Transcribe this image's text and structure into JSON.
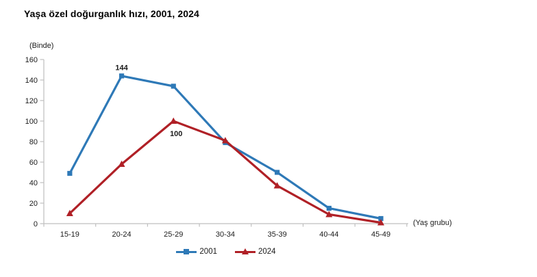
{
  "chart_data": {
    "type": "line",
    "title": "Yaşa özel doğurganlık hızı, 2001, 2024",
    "unit_label": "(Binde)",
    "x_axis_label": "(Yaş grubu)",
    "categories": [
      "15-19",
      "20-24",
      "25-29",
      "30-34",
      "35-39",
      "40-44",
      "45-49"
    ],
    "ylim": [
      0,
      160
    ],
    "yticks": [
      0,
      20,
      40,
      60,
      80,
      100,
      120,
      140,
      160
    ],
    "grid": false,
    "legend_position": "bottom",
    "background": "#ffffff",
    "axis_color": "#bfbfbf",
    "text_color": "#1a1a1a",
    "series": [
      {
        "name": "2001",
        "color": "#2e79b7",
        "marker": "square",
        "values": [
          49,
          144,
          134,
          79,
          50,
          15,
          5
        ],
        "data_labels": [
          {
            "index": 1,
            "label": "144",
            "position": "above"
          }
        ]
      },
      {
        "name": "2024",
        "color": "#b02026",
        "marker": "triangle",
        "values": [
          10,
          58,
          100,
          81,
          37,
          9,
          1
        ],
        "data_labels": [
          {
            "index": 2,
            "label": "100",
            "position": "below"
          }
        ]
      }
    ]
  }
}
